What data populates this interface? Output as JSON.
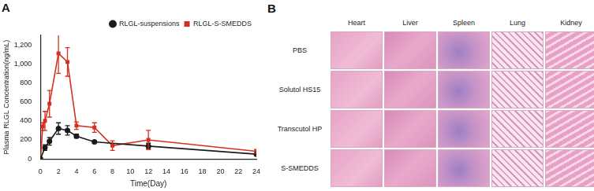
{
  "chart_data": {
    "type": "line",
    "title": "A",
    "x_label": "Time(Day)",
    "y_label": "Plasma RLGL Concentration(ng/mL)",
    "xlim": [
      0,
      24
    ],
    "xticks": [
      0,
      2,
      4,
      6,
      8,
      10,
      12,
      14,
      16,
      18,
      20,
      22,
      24
    ],
    "ylim": [
      0,
      1300
    ],
    "yticks": [
      0,
      200,
      400,
      600,
      800,
      1000,
      1200
    ],
    "grid": false,
    "legend": "upper right",
    "series": [
      {
        "name": "RLGL-suspensions",
        "color": "#1a1a1a",
        "marker": "circle",
        "line_style": "solid",
        "x": [
          0,
          0.5,
          1,
          2,
          3,
          4,
          6,
          12,
          24
        ],
        "values": [
          0,
          120,
          185,
          320,
          300,
          240,
          180,
          135,
          50
        ],
        "errors": [
          0,
          30,
          40,
          60,
          50,
          20,
          10,
          30,
          10
        ]
      },
      {
        "name": "RLGL-S-SMEDDS",
        "color": "#d62e1f",
        "marker": "square",
        "line_style": "solid",
        "x": [
          0,
          0.25,
          0.5,
          1,
          2,
          3,
          4,
          6,
          8,
          12,
          24
        ],
        "values": [
          0,
          340,
          400,
          580,
          1110,
          1020,
          350,
          330,
          140,
          200,
          80
        ],
        "errors": [
          0,
          40,
          100,
          140,
          210,
          150,
          40,
          50,
          50,
          100,
          20
        ]
      }
    ]
  },
  "histology": {
    "label": "B",
    "columns": [
      "Heart",
      "Liver",
      "Spleen",
      "Lung",
      "Kidney"
    ],
    "rows": [
      "PBS",
      "Solutol HS15",
      "Transcutol HP",
      "S-SMEDDS"
    ]
  }
}
